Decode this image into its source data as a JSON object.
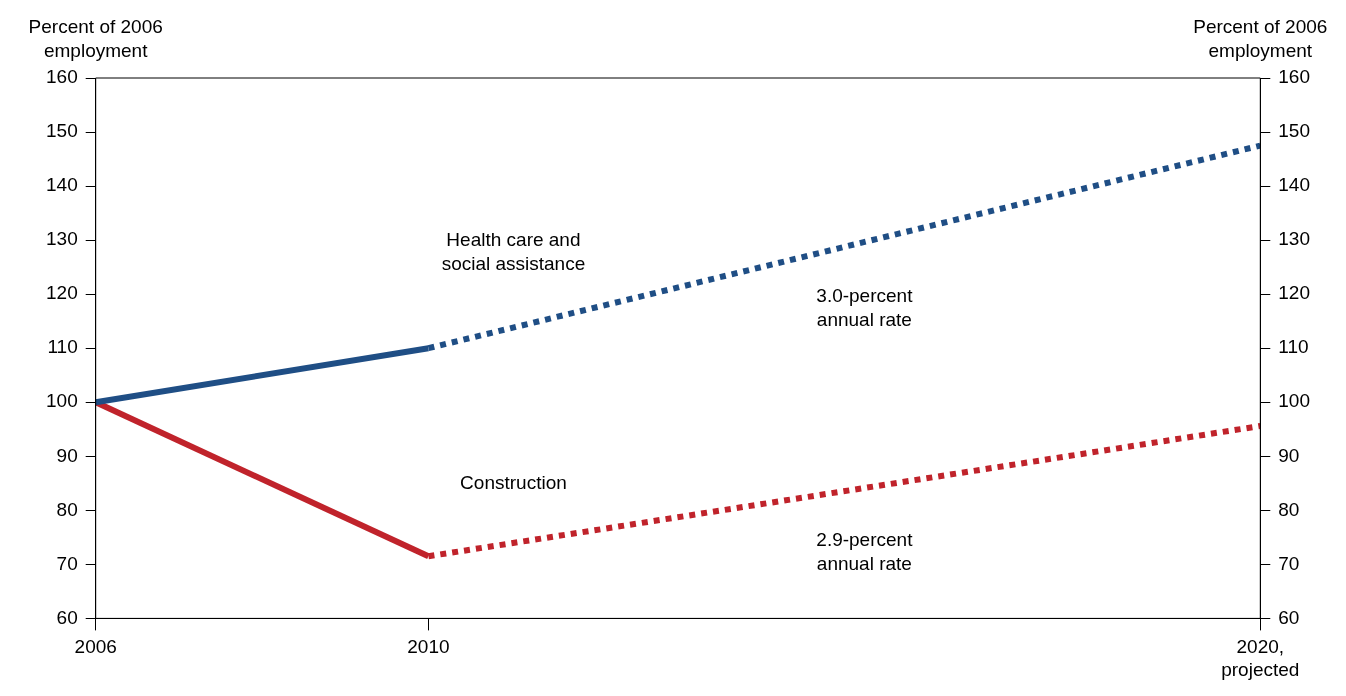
{
  "chart_data": {
    "type": "line",
    "ylabel": "Percent of 2006\nemployment",
    "y2label": "Percent of 2006\nemployment",
    "xlim": [
      2006,
      2020
    ],
    "xticks": [
      2006,
      2010,
      {
        "value": 2020,
        "label": "2020,\nprojected"
      }
    ],
    "ylim": [
      60,
      160
    ],
    "yticks": [
      60,
      70,
      80,
      90,
      100,
      110,
      120,
      130,
      140,
      150,
      160
    ],
    "y2lim": [
      60,
      160
    ],
    "y2ticks": [
      60,
      70,
      80,
      90,
      100,
      110,
      120,
      130,
      140,
      150,
      160
    ],
    "legend": false,
    "marker": "none",
    "series": [
      {
        "name": "Health care and\nsocial assistance",
        "color": "#1f4e85",
        "x": [
          2006,
          2010
        ],
        "values": [
          100,
          110
        ],
        "line_style": "solid"
      },
      {
        "color": "#1f4e85",
        "x": [
          2010,
          2020
        ],
        "values": [
          110,
          147.5
        ],
        "line_style": "dotted"
      },
      {
        "name": "Construction",
        "color": "#c0232b",
        "x": [
          2006,
          2010
        ],
        "values": [
          100,
          71.5
        ],
        "line_style": "solid"
      },
      {
        "color": "#c0232b",
        "x": [
          2010,
          2020
        ],
        "values": [
          71.5,
          95.6
        ],
        "line_style": "dotted"
      }
    ],
    "annotations": [
      "3.0-percent\nannual rate",
      "2.9-percent\nannual rate"
    ]
  }
}
